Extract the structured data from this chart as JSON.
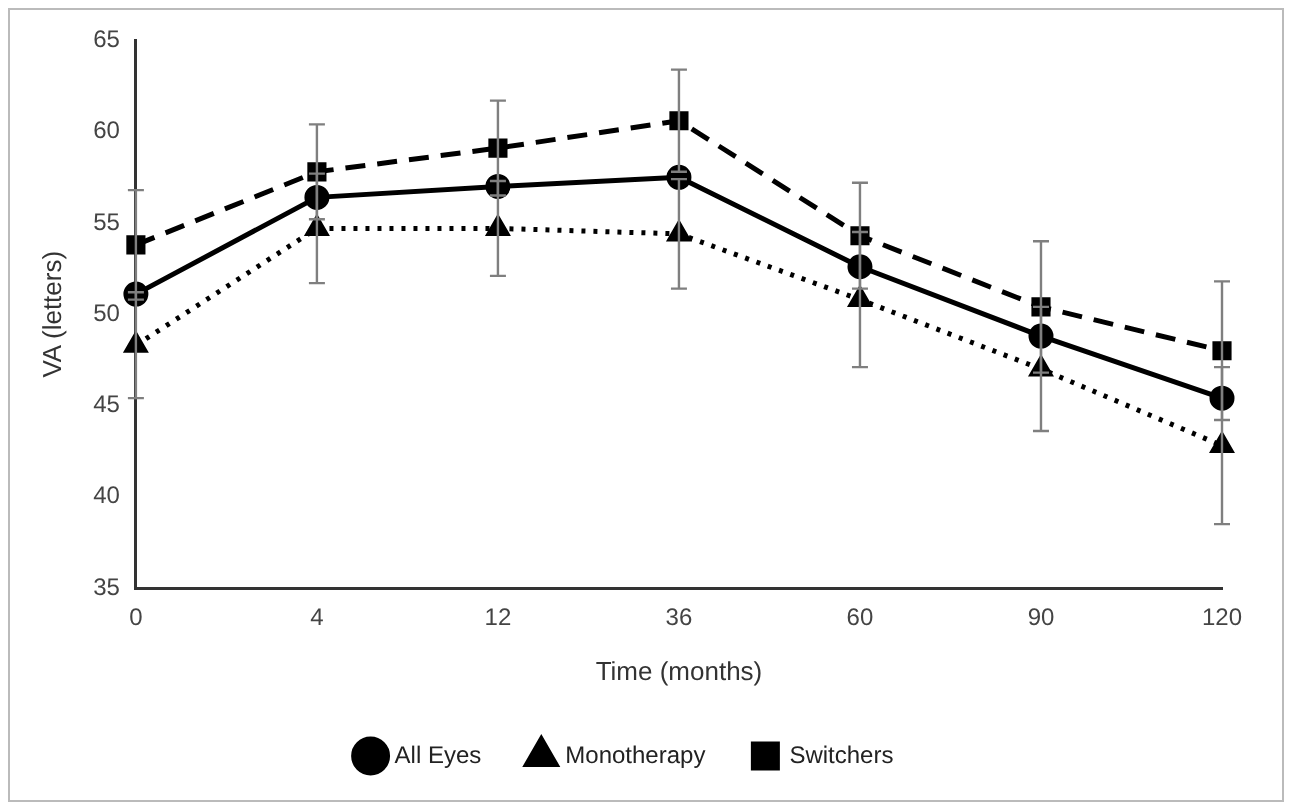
{
  "chart_data": {
    "type": "line",
    "xlabel": "Time (months)",
    "ylabel": "VA (letters)",
    "categories": [
      "0",
      "4",
      "12",
      "36",
      "60",
      "90",
      "120"
    ],
    "ylim": [
      35,
      65
    ],
    "yticks": [
      35,
      40,
      45,
      50,
      55,
      60,
      65
    ],
    "grid": false,
    "legend": "bottom",
    "series": [
      {
        "name": "All Eyes",
        "color": "#000000",
        "marker": "circle",
        "line_style": "solid",
        "values": [
          51.1,
          56.4,
          57.0,
          57.5,
          52.6,
          48.8,
          45.4
        ]
      },
      {
        "name": "Monotherapy",
        "color": "#000000",
        "marker": "triangle",
        "line_style": "dotted",
        "values": [
          48.3,
          54.7,
          54.7,
          54.4,
          50.8,
          47.0,
          42.8
        ],
        "errors": [
          2.9,
          3.0,
          2.6,
          3.0,
          3.7,
          3.4,
          4.3
        ]
      },
      {
        "name": "Switchers",
        "color": "#000000",
        "marker": "square",
        "line_style": "dashed",
        "values": [
          53.8,
          57.8,
          59.1,
          60.6,
          54.3,
          50.4,
          48.0
        ],
        "errors": [
          3.0,
          2.6,
          2.6,
          2.8,
          2.9,
          3.6,
          3.8
        ]
      }
    ]
  }
}
